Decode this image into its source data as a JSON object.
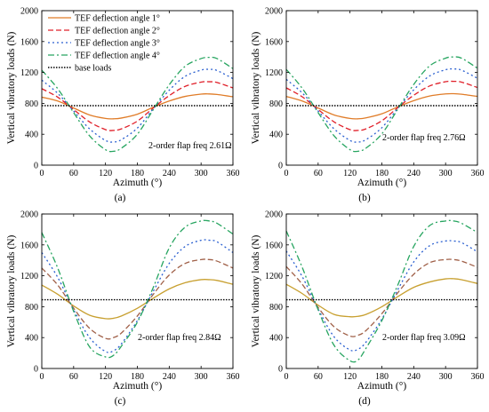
{
  "chart_data": [
    {
      "type": "line",
      "panel_label": "(a)",
      "xlabel": "Azimuth (°)",
      "ylabel": "Vertical vibratory loads (N)",
      "annotation": "2-order flap freq 2.61Ω",
      "xlim": [
        0,
        360
      ],
      "ylim": [
        0,
        2000
      ],
      "xticks": [
        "0",
        "60",
        "120",
        "180",
        "240",
        "300",
        "360"
      ],
      "yticks": [
        "0",
        "400",
        "800",
        "1200",
        "1600",
        "2000"
      ],
      "legend_position": "top-left",
      "base_load": 770,
      "series": [
        {
          "name": "TEF deflection angle 1°",
          "color": "#e07c28",
          "dash": "solid",
          "x": [
            0,
            30,
            60,
            90,
            120,
            135,
            150,
            180,
            210,
            240,
            270,
            300,
            315,
            330,
            360
          ],
          "values": [
            880,
            830,
            740,
            650,
            605,
            600,
            610,
            660,
            750,
            830,
            890,
            920,
            922,
            915,
            885
          ]
        },
        {
          "name": "TEF deflection angle 2°",
          "color": "#e0202a",
          "dash": "dash",
          "x": [
            0,
            30,
            60,
            90,
            120,
            135,
            150,
            180,
            210,
            240,
            270,
            300,
            315,
            330,
            360
          ],
          "values": [
            990,
            880,
            720,
            560,
            460,
            450,
            470,
            570,
            740,
            900,
            1020,
            1075,
            1080,
            1070,
            1000
          ]
        },
        {
          "name": "TEF deflection angle 3°",
          "color": "#2a5fd0",
          "dash": "dot",
          "x": [
            0,
            30,
            60,
            90,
            120,
            135,
            150,
            180,
            210,
            240,
            270,
            300,
            315,
            330,
            360
          ],
          "values": [
            1100,
            930,
            700,
            470,
            320,
            300,
            330,
            480,
            730,
            970,
            1150,
            1230,
            1240,
            1225,
            1120
          ]
        },
        {
          "name": "TEF deflection angle 4°",
          "color": "#27a560",
          "dash": "dashdot",
          "x": [
            0,
            30,
            60,
            90,
            120,
            135,
            150,
            180,
            210,
            240,
            270,
            300,
            315,
            330,
            360
          ],
          "values": [
            1230,
            990,
            680,
            380,
            200,
            180,
            220,
            400,
            720,
            1040,
            1280,
            1380,
            1395,
            1380,
            1250
          ]
        },
        {
          "name": "base loads",
          "color": "#000000",
          "dash": "dotted-base",
          "x": [
            0,
            360
          ],
          "values": [
            770,
            770
          ]
        }
      ]
    },
    {
      "type": "line",
      "panel_label": "(b)",
      "xlabel": "Azimuth (°)",
      "ylabel": "Vertical vibratory loads (N)",
      "annotation": "2-order flap freq 2.76Ω",
      "xlim": [
        0,
        360
      ],
      "ylim": [
        0,
        2000
      ],
      "xticks": [
        "0",
        "60",
        "120",
        "180",
        "240",
        "300",
        "360"
      ],
      "yticks": [
        "0",
        "400",
        "800",
        "1200",
        "1600",
        "2000"
      ],
      "base_load": 770,
      "series": [
        {
          "color": "#e07c28",
          "dash": "solid",
          "x": [
            0,
            30,
            60,
            90,
            120,
            135,
            150,
            180,
            210,
            240,
            270,
            300,
            315,
            330,
            360
          ],
          "values": [
            890,
            830,
            740,
            650,
            605,
            600,
            612,
            665,
            755,
            835,
            895,
            922,
            925,
            918,
            890
          ]
        },
        {
          "color": "#e0202a",
          "dash": "dash",
          "x": [
            0,
            30,
            60,
            90,
            120,
            135,
            150,
            180,
            210,
            240,
            270,
            300,
            315,
            330,
            360
          ],
          "values": [
            1000,
            885,
            720,
            560,
            460,
            450,
            470,
            575,
            745,
            905,
            1025,
            1080,
            1085,
            1075,
            1005
          ]
        },
        {
          "color": "#2a5fd0",
          "dash": "dot",
          "x": [
            0,
            30,
            60,
            90,
            120,
            135,
            150,
            180,
            210,
            240,
            270,
            300,
            315,
            330,
            360
          ],
          "values": [
            1110,
            935,
            700,
            470,
            320,
            300,
            330,
            485,
            735,
            975,
            1155,
            1235,
            1245,
            1230,
            1125
          ]
        },
        {
          "color": "#27a560",
          "dash": "dashdot",
          "x": [
            0,
            30,
            60,
            90,
            120,
            135,
            150,
            180,
            210,
            240,
            270,
            300,
            315,
            330,
            360
          ],
          "values": [
            1240,
            995,
            680,
            380,
            200,
            180,
            220,
            405,
            725,
            1045,
            1285,
            1385,
            1400,
            1385,
            1255
          ]
        },
        {
          "color": "#000000",
          "dash": "dotted-base",
          "x": [
            0,
            360
          ],
          "values": [
            770,
            770
          ]
        }
      ]
    },
    {
      "type": "line",
      "panel_label": "(c)",
      "xlabel": "Azimuth (°)",
      "ylabel": "Vertical vibratory loads (N)",
      "annotation": "2-order flap freq 2.84Ω",
      "xlim": [
        0,
        360
      ],
      "ylim": [
        0,
        2000
      ],
      "xticks": [
        "0",
        "60",
        "120",
        "180",
        "240",
        "300",
        "360"
      ],
      "yticks": [
        "0",
        "400",
        "800",
        "1200",
        "1600",
        "2000"
      ],
      "base_load": 890,
      "series": [
        {
          "color": "#c8a030",
          "dash": "solid",
          "x": [
            0,
            30,
            60,
            90,
            120,
            135,
            150,
            180,
            210,
            240,
            270,
            300,
            315,
            330,
            360
          ],
          "values": [
            1080,
            960,
            810,
            690,
            645,
            650,
            680,
            780,
            910,
            1030,
            1110,
            1150,
            1150,
            1140,
            1090
          ]
        },
        {
          "color": "#a06048",
          "dash": "dash",
          "x": [
            0,
            30,
            60,
            90,
            120,
            135,
            150,
            180,
            210,
            240,
            270,
            300,
            315,
            330,
            360
          ],
          "values": [
            1300,
            1080,
            780,
            520,
            390,
            400,
            460,
            680,
            960,
            1210,
            1360,
            1410,
            1410,
            1390,
            1300
          ]
        },
        {
          "color": "#2a5fd0",
          "dash": "dot",
          "x": [
            0,
            30,
            60,
            90,
            120,
            135,
            150,
            180,
            210,
            240,
            270,
            300,
            315,
            330,
            360
          ],
          "values": [
            1500,
            1180,
            760,
            400,
            220,
            230,
            320,
            620,
            1000,
            1360,
            1580,
            1660,
            1660,
            1640,
            1500
          ]
        },
        {
          "color": "#27a560",
          "dash": "dashdot",
          "x": [
            0,
            30,
            60,
            90,
            120,
            135,
            150,
            180,
            210,
            240,
            270,
            300,
            315,
            330,
            360
          ],
          "values": [
            1760,
            1300,
            740,
            280,
            150,
            170,
            290,
            600,
            1050,
            1560,
            1830,
            1910,
            1910,
            1880,
            1740
          ]
        },
        {
          "color": "#000000",
          "dash": "dotted-base",
          "x": [
            0,
            360
          ],
          "values": [
            890,
            890
          ]
        }
      ]
    },
    {
      "type": "line",
      "panel_label": "(d)",
      "xlabel": "Azimuth (°)",
      "ylabel": "Vertical vibratory loads (N)",
      "annotation": "2-order flap freq 3.09Ω",
      "xlim": [
        0,
        360
      ],
      "ylim": [
        0,
        2000
      ],
      "xticks": [
        "0",
        "60",
        "120",
        "180",
        "240",
        "300",
        "360"
      ],
      "yticks": [
        "0",
        "400",
        "800",
        "1200",
        "1600",
        "2000"
      ],
      "base_load": 890,
      "series": [
        {
          "color": "#c8a030",
          "dash": "solid",
          "x": [
            0,
            30,
            60,
            90,
            120,
            135,
            150,
            180,
            210,
            240,
            270,
            300,
            315,
            330,
            360
          ],
          "values": [
            1090,
            970,
            820,
            700,
            670,
            675,
            700,
            800,
            930,
            1050,
            1120,
            1160,
            1162,
            1150,
            1100
          ]
        },
        {
          "color": "#a06048",
          "dash": "dash",
          "x": [
            0,
            30,
            60,
            90,
            120,
            135,
            150,
            180,
            210,
            240,
            270,
            300,
            315,
            330,
            360
          ],
          "values": [
            1320,
            1090,
            790,
            540,
            420,
            430,
            490,
            710,
            980,
            1220,
            1370,
            1410,
            1410,
            1390,
            1310
          ]
        },
        {
          "color": "#2a5fd0",
          "dash": "dot",
          "x": [
            0,
            30,
            60,
            90,
            120,
            135,
            150,
            180,
            210,
            240,
            270,
            300,
            315,
            330,
            360
          ],
          "values": [
            1520,
            1190,
            770,
            410,
            240,
            250,
            340,
            640,
            1020,
            1380,
            1590,
            1650,
            1650,
            1630,
            1510
          ]
        },
        {
          "color": "#27a560",
          "dash": "dashdot",
          "x": [
            0,
            30,
            60,
            90,
            120,
            135,
            150,
            180,
            210,
            240,
            270,
            300,
            315,
            330,
            360
          ],
          "values": [
            1780,
            1310,
            760,
            300,
            100,
            110,
            260,
            620,
            1080,
            1580,
            1850,
            1910,
            1910,
            1880,
            1760
          ]
        },
        {
          "color": "#000000",
          "dash": "dotted-base",
          "x": [
            0,
            360
          ],
          "values": [
            890,
            890
          ]
        }
      ]
    }
  ]
}
